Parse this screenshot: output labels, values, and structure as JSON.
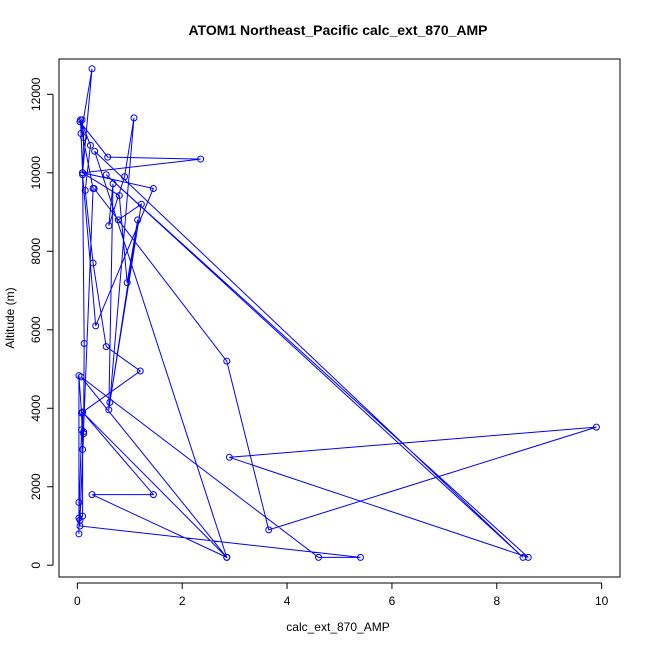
{
  "chart_data": {
    "type": "line",
    "title": "ATOM1 Northeast_Pacific calc_ext_870_AMP",
    "xlabel": "calc_ext_870_AMP",
    "ylabel": "Altitude (m)",
    "xlim": [
      -0.35,
      10.35
    ],
    "ylim": [
      -300,
      12900
    ],
    "xticks": [
      0,
      2,
      4,
      6,
      8,
      10
    ],
    "yticks": [
      0,
      2000,
      4000,
      6000,
      8000,
      10000,
      12000
    ],
    "xtick_labels": [
      "0",
      "2",
      "4",
      "6",
      "8",
      "10"
    ],
    "ytick_labels": [
      "0",
      "2000",
      "4000",
      "6000",
      "8000",
      "10000",
      "12000"
    ],
    "grid": false,
    "color": "#0000ff",
    "marker": "open-circle",
    "series": [
      {
        "x": [
          0.03,
          0.03,
          0.08,
          0.1,
          0.12,
          0.08,
          0.03,
          0.1,
          0.1,
          1.2,
          0.55,
          0.3,
          0.15,
          0.25,
          0.06,
          0.1,
          0.28,
          0.07,
          0.09,
          0.12,
          0.1,
          1.45,
          0.35,
          0.1,
          0.13,
          0.12,
          0.05,
          0.3,
          0.05,
          0.58,
          2.35,
          0.1,
          0.8,
          0.95,
          1.15,
          0.6,
          0.68,
          0.6,
          0.9,
          1.08,
          0.62,
          1.22,
          0.78,
          0.32,
          2.85,
          3.65,
          9.9,
          2.9,
          8.6,
          0.55,
          8.5,
          0.33,
          2.85,
          0.28,
          1.45,
          0.1,
          2.85,
          0.07,
          4.6,
          5.4,
          0.05,
          0.03
        ],
        "y": [
          800,
          4830,
          3880,
          2950,
          3350,
          3450,
          1200,
          1250,
          3900,
          4950,
          5570,
          7700,
          9550,
          10700,
          11350,
          10000,
          12650,
          11000,
          11350,
          10900,
          10000,
          9600,
          6100,
          9950,
          5650,
          3400,
          1150,
          9600,
          11300,
          10400,
          10350,
          10000,
          9420,
          7200,
          8800,
          3960,
          9720,
          8650,
          9900,
          11400,
          4150,
          9200,
          8800,
          9600,
          5200,
          900,
          3520,
          2750,
          200,
          9950,
          200,
          10550,
          200,
          1800,
          1800,
          3900,
          200,
          4800,
          200,
          200,
          1000,
          1600
        ]
      }
    ]
  }
}
